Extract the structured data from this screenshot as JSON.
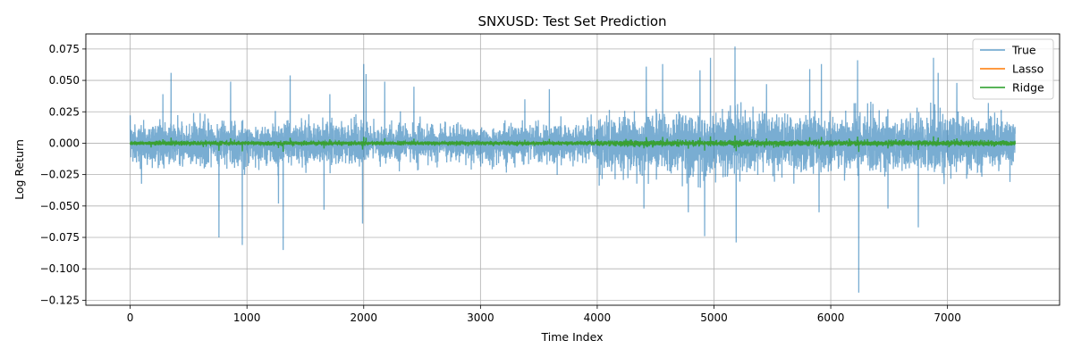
{
  "chart_data": {
    "type": "line",
    "title": "SNXUSD: Test Set Prediction",
    "xlabel": "Time Index",
    "ylabel": "Log Return",
    "xlim": [
      -380,
      7960
    ],
    "ylim": [
      -0.129,
      0.087
    ],
    "x_ticks": [
      0,
      1000,
      2000,
      3000,
      4000,
      5000,
      6000,
      7000
    ],
    "x_tick_labels": [
      "0",
      "1000",
      "2000",
      "3000",
      "4000",
      "5000",
      "6000",
      "7000"
    ],
    "y_ticks": [
      0.075,
      0.05,
      0.025,
      0.0,
      -0.025,
      -0.05,
      -0.075,
      -0.1,
      -0.125
    ],
    "y_tick_labels": [
      "0.075",
      "0.050",
      "0.025",
      "0.000",
      "−0.025",
      "−0.050",
      "−0.075",
      "−0.100",
      "−0.125"
    ],
    "grid": true,
    "legend_position": "top-right",
    "n_points": 7580,
    "series": [
      {
        "name": "True",
        "color": "#1f77b4",
        "opacity": 0.6,
        "volatility_regimes": [
          {
            "x_start": 0,
            "x_end": 2000,
            "std": 0.008
          },
          {
            "x_start": 2000,
            "x_end": 4000,
            "std": 0.007
          },
          {
            "x_start": 4000,
            "x_end": 6000,
            "std": 0.011
          },
          {
            "x_start": 6000,
            "x_end": 7580,
            "std": 0.01
          }
        ],
        "spikes": [
          {
            "x": 40,
            "y": 0.015
          },
          {
            "x": 280,
            "y": 0.039
          },
          {
            "x": 350,
            "y": 0.056
          },
          {
            "x": 760,
            "y": -0.075
          },
          {
            "x": 860,
            "y": 0.049
          },
          {
            "x": 960,
            "y": -0.081
          },
          {
            "x": 1270,
            "y": -0.048
          },
          {
            "x": 1310,
            "y": -0.085
          },
          {
            "x": 1370,
            "y": 0.054
          },
          {
            "x": 1660,
            "y": -0.053
          },
          {
            "x": 1710,
            "y": 0.039
          },
          {
            "x": 1990,
            "y": -0.064
          },
          {
            "x": 2000,
            "y": 0.063
          },
          {
            "x": 2020,
            "y": 0.055
          },
          {
            "x": 2180,
            "y": 0.049
          },
          {
            "x": 2430,
            "y": 0.045
          },
          {
            "x": 3380,
            "y": 0.035
          },
          {
            "x": 3590,
            "y": 0.043
          },
          {
            "x": 4400,
            "y": -0.052
          },
          {
            "x": 4420,
            "y": 0.061
          },
          {
            "x": 4560,
            "y": 0.063
          },
          {
            "x": 4780,
            "y": -0.055
          },
          {
            "x": 4880,
            "y": 0.058
          },
          {
            "x": 4920,
            "y": -0.074
          },
          {
            "x": 4970,
            "y": 0.068
          },
          {
            "x": 5180,
            "y": 0.077
          },
          {
            "x": 5190,
            "y": -0.079
          },
          {
            "x": 5450,
            "y": 0.047
          },
          {
            "x": 5820,
            "y": 0.059
          },
          {
            "x": 5900,
            "y": -0.055
          },
          {
            "x": 5920,
            "y": 0.063
          },
          {
            "x": 6230,
            "y": 0.066
          },
          {
            "x": 6240,
            "y": -0.119
          },
          {
            "x": 6490,
            "y": -0.052
          },
          {
            "x": 6750,
            "y": -0.067
          },
          {
            "x": 6880,
            "y": 0.068
          },
          {
            "x": 6920,
            "y": 0.056
          },
          {
            "x": 7080,
            "y": 0.048
          },
          {
            "x": 7350,
            "y": 0.032
          }
        ]
      },
      {
        "name": "Lasso",
        "color": "#ff7f0e",
        "opacity": 0.9,
        "constant_value": 0.0
      },
      {
        "name": "Ridge",
        "color": "#2ca02c",
        "opacity": 0.9,
        "std": 0.0009
      }
    ]
  }
}
